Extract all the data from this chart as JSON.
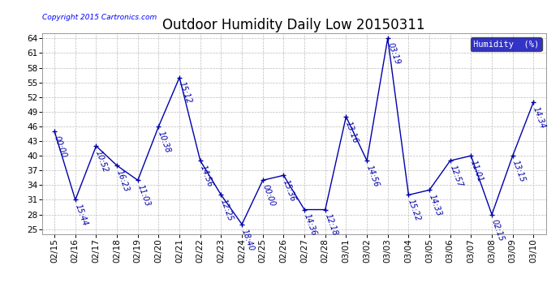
{
  "title": "Outdoor Humidity Daily Low 20150311",
  "copyright": "Copyright 2015 Cartronics.com",
  "legend_label": "Humidity  (%)",
  "x_labels": [
    "02/15",
    "02/16",
    "02/17",
    "02/18",
    "02/19",
    "02/20",
    "02/21",
    "02/22",
    "02/23",
    "02/24",
    "02/25",
    "02/26",
    "02/27",
    "02/28",
    "03/01",
    "03/02",
    "03/03",
    "03/04",
    "03/05",
    "03/06",
    "03/07",
    "03/08",
    "03/09",
    "03/10"
  ],
  "y_values": [
    45,
    31,
    42,
    38,
    35,
    46,
    56,
    39,
    32,
    26,
    35,
    36,
    29,
    29,
    48,
    39,
    64,
    32,
    33,
    39,
    40,
    28,
    40,
    51
  ],
  "time_labels": [
    "00:00",
    "15:44",
    "10:52",
    "16:23",
    "11:03",
    "10:38",
    "15:12",
    "14:56",
    "12:25",
    "18:40",
    "00:00",
    "15:36",
    "14:36",
    "12:18",
    "13:16",
    "14:56",
    "03:19",
    "15:22",
    "14:33",
    "12:57",
    "11:01",
    "02:15",
    "13:15",
    "14:34"
  ],
  "ylim": [
    24,
    65
  ],
  "yticks": [
    25,
    28,
    31,
    34,
    37,
    40,
    43,
    46,
    49,
    52,
    55,
    58,
    61,
    64
  ],
  "ytick_labels": [
    "25",
    "28",
    "31",
    "34",
    "37",
    "40",
    "43",
    "46",
    "49",
    "52",
    "55",
    "58",
    "61",
    "64"
  ],
  "line_color": "#0000aa",
  "marker_color": "#0000aa",
  "bg_color": "#ffffff",
  "plot_bg_color": "#ffffff",
  "grid_color": "#bbbbbb",
  "title_fontsize": 12,
  "annotation_fontsize": 7,
  "tick_fontsize": 7.5,
  "copyright_fontsize": 6.5,
  "legend_bg": "#0000bb",
  "legend_text_color": "#ffffff",
  "legend_fontsize": 7.5
}
